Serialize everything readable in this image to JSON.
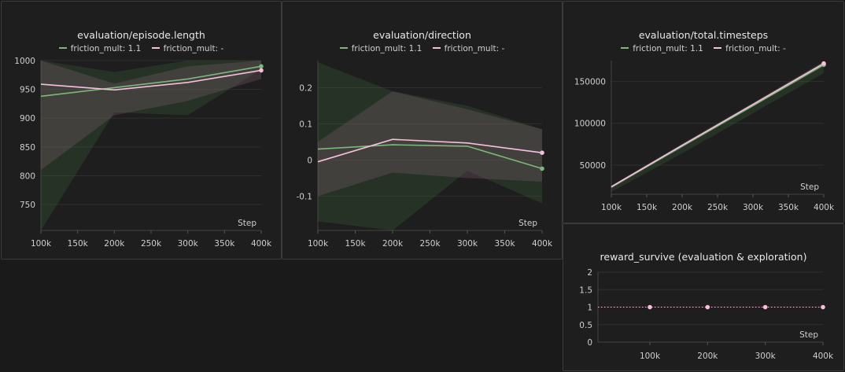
{
  "colors": {
    "green": "#7cb87c",
    "pink": "#f6c0dc"
  },
  "chart_data": [
    {
      "type": "line",
      "title": "evaluation/episode.length",
      "xlabel": "Step",
      "x": [
        100000,
        200000,
        300000,
        400000
      ],
      "xticks": [
        100000,
        150000,
        200000,
        250000,
        300000,
        350000,
        400000
      ],
      "xticklabels": [
        "100k",
        "150k",
        "200k",
        "250k",
        "300k",
        "350k",
        "400k"
      ],
      "yticks": [
        750,
        800,
        850,
        900,
        950,
        1000
      ],
      "yticklabels": [
        "750",
        "800",
        "850",
        "900",
        "950",
        "1000"
      ],
      "ylim": [
        705,
        1000
      ],
      "series": [
        {
          "name": "friction_mult: 1.1",
          "color": "green",
          "values": [
            938,
            953,
            968,
            990
          ],
          "min": [
            705,
            910,
            905,
            985
          ],
          "max": [
            1000,
            980,
            1000,
            1000
          ]
        },
        {
          "name": "friction_mult: -",
          "color": "pink",
          "values": [
            959,
            949,
            962,
            983
          ],
          "min": [
            810,
            905,
            930,
            968
          ],
          "max": [
            1000,
            960,
            990,
            1000
          ]
        }
      ]
    },
    {
      "type": "line",
      "title": "evaluation/direction",
      "xlabel": "Step",
      "x": [
        100000,
        200000,
        300000,
        400000
      ],
      "xticks": [
        100000,
        150000,
        200000,
        250000,
        300000,
        350000,
        400000
      ],
      "xticklabels": [
        "100k",
        "150k",
        "200k",
        "250k",
        "300k",
        "350k",
        "400k"
      ],
      "yticks": [
        -0.1,
        0,
        0.1,
        0.2
      ],
      "yticklabels": [
        "-0.1",
        "0",
        "0.1",
        "0.2"
      ],
      "ylim": [
        -0.195,
        0.275
      ],
      "series": [
        {
          "name": "friction_mult: 1.1",
          "color": "green",
          "values": [
            0.03,
            0.042,
            0.038,
            -0.024
          ],
          "min": [
            -0.17,
            -0.195,
            -0.03,
            -0.12
          ],
          "max": [
            0.27,
            0.19,
            0.15,
            0.085
          ]
        },
        {
          "name": "friction_mult: -",
          "color": "pink",
          "values": [
            -0.005,
            0.057,
            0.047,
            0.02
          ],
          "min": [
            -0.1,
            -0.035,
            -0.05,
            -0.06
          ],
          "max": [
            0.05,
            0.19,
            0.14,
            0.085
          ]
        }
      ]
    },
    {
      "type": "line",
      "title": "evaluation/total.timesteps",
      "xlabel": "Step",
      "x": [
        100000,
        200000,
        300000,
        400000
      ],
      "xticks": [
        100000,
        150000,
        200000,
        250000,
        300000,
        350000,
        400000
      ],
      "xticklabels": [
        "100k",
        "150k",
        "200k",
        "250k",
        "300k",
        "350k",
        "400k"
      ],
      "yticks": [
        50000,
        100000,
        150000
      ],
      "yticklabels": [
        "50000",
        "100000",
        "150000"
      ],
      "ylim": [
        15000,
        175000
      ],
      "series": [
        {
          "name": "friction_mult: 1.1",
          "color": "green",
          "values": [
            23500,
            72500,
            121000,
            170000
          ],
          "min": [
            18000,
            64000,
            112000,
            160000
          ],
          "max": [
            25000,
            75000,
            124000,
            174000
          ]
        },
        {
          "name": "friction_mult: -",
          "color": "pink",
          "values": [
            24000,
            73500,
            122500,
            171500
          ],
          "min": [
            22000,
            71000,
            120000,
            168000
          ],
          "max": [
            25500,
            75500,
            124500,
            174000
          ]
        }
      ]
    },
    {
      "type": "scatter",
      "title": "reward_survive (evaluation & exploration)",
      "xlabel": "Step",
      "x": [
        100000,
        200000,
        300000,
        400000
      ],
      "xticks": [
        100000,
        200000,
        300000,
        400000
      ],
      "xticklabels": [
        "100k",
        "200k",
        "300k",
        "400k"
      ],
      "yticks": [
        0,
        0.5,
        1,
        1.5,
        2
      ],
      "yticklabels": [
        "0",
        "0.5",
        "1",
        "1.5",
        "2"
      ],
      "xlim": [
        10000,
        400000
      ],
      "ylim": [
        0,
        2
      ],
      "series": [
        {
          "color": "pink",
          "values": [
            1,
            1,
            1,
            1
          ]
        }
      ]
    }
  ]
}
